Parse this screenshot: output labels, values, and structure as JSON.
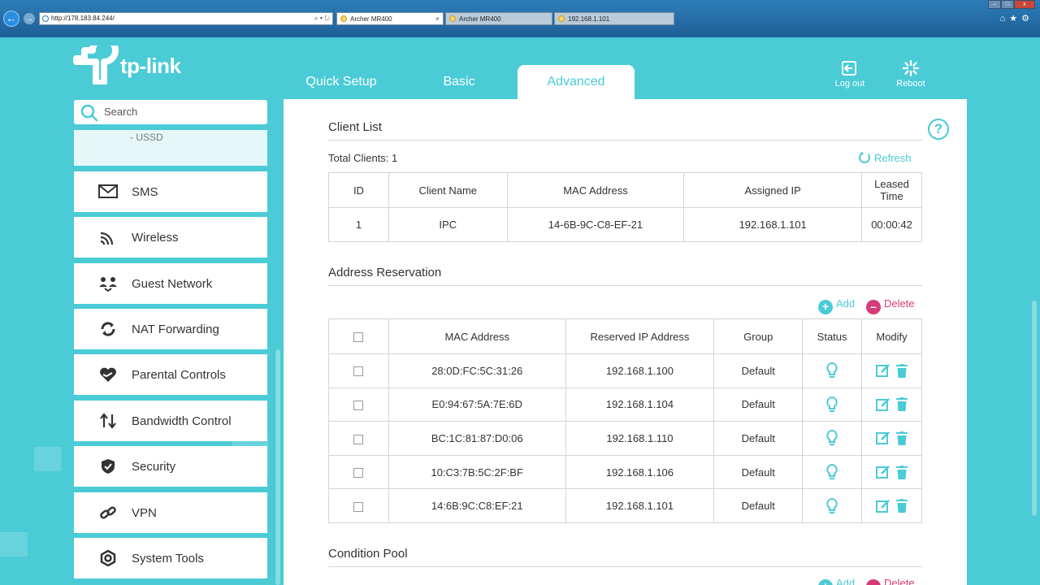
{
  "browser": {
    "address": "http://178.183.84.244/",
    "tabs": [
      {
        "title": "Archer MR400",
        "active": true
      },
      {
        "title": "Archer MR400",
        "active": false
      },
      {
        "title": "192.168.1.101",
        "active": false
      }
    ]
  },
  "header": {
    "logo_text": "tp-link",
    "tabs": [
      {
        "label": "Quick Setup",
        "active": false
      },
      {
        "label": "Basic",
        "active": false
      },
      {
        "label": "Advanced",
        "active": true
      }
    ],
    "logout_label": "Log out",
    "reboot_label": "Reboot"
  },
  "sidebar": {
    "search_placeholder": "Search",
    "sub_item": "- USSD",
    "items": [
      {
        "label": "SMS",
        "icon": "envelope-icon"
      },
      {
        "label": "Wireless",
        "icon": "wifi-icon"
      },
      {
        "label": "Guest Network",
        "icon": "guest-network-icon"
      },
      {
        "label": "NAT Forwarding",
        "icon": "nat-forwarding-icon"
      },
      {
        "label": "Parental Controls",
        "icon": "heart-icon"
      },
      {
        "label": "Bandwidth Control",
        "icon": "arrows-updown-icon"
      },
      {
        "label": "Security",
        "icon": "shield-icon"
      },
      {
        "label": "VPN",
        "icon": "link-icon"
      },
      {
        "label": "System Tools",
        "icon": "gear-icon"
      }
    ]
  },
  "client_list": {
    "title": "Client List",
    "total_label": "Total Clients: 1",
    "refresh_label": "Refresh",
    "columns": [
      "ID",
      "Client Name",
      "MAC Address",
      "Assigned IP",
      "Leased Time"
    ],
    "rows": [
      {
        "id": "1",
        "name": "IPC",
        "mac": "14-6B-9C-C8-EF-21",
        "ip": "192.168.1.101",
        "leased": "00:00:42"
      }
    ]
  },
  "address_reservation": {
    "title": "Address Reservation",
    "add_label": "Add",
    "delete_label": "Delete",
    "columns": [
      "MAC Address",
      "Reserved IP Address",
      "Group",
      "Status",
      "Modify"
    ],
    "rows": [
      {
        "mac": "28:0D:FC:5C:31:26",
        "ip": "192.168.1.100",
        "group": "Default"
      },
      {
        "mac": "E0:94:67:5A:7E:6D",
        "ip": "192.168.1.104",
        "group": "Default"
      },
      {
        "mac": "BC:1C:81:87:D0:06",
        "ip": "192.168.1.110",
        "group": "Default"
      },
      {
        "mac": "10:C3:7B:5C:2F:BF",
        "ip": "192.168.1.106",
        "group": "Default"
      },
      {
        "mac": "14:6B:9C:C8:EF:21",
        "ip": "192.168.1.101",
        "group": "Default"
      }
    ]
  },
  "condition_pool": {
    "title": "Condition Pool"
  },
  "colors": {
    "accent": "#4acbd6",
    "delete": "#d63b78"
  }
}
